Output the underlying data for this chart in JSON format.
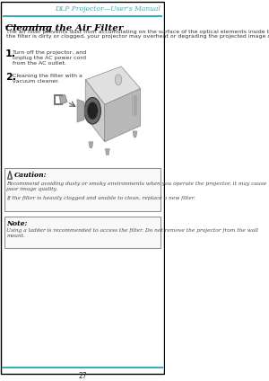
{
  "bg_color": "#ffffff",
  "border_color": "#000000",
  "header_line_color": "#3aacb5",
  "header_text": "DLP Projector—User's Manual",
  "header_text_color": "#3aacb5",
  "page_num": "27",
  "section_title": "Cleaning the Air Filter",
  "section_title_color": "#000000",
  "intro_text": "The air filter prevents dust from accumulating on the surface of the optical elements inside the projector. If\nthe filter is dirty or clogged, your projector may overheat or degrading the projected image quality.",
  "step1_num": "1.",
  "step1_text": "Turn off the projector, and\nunplug the AC power cord\nfrom the AC outlet.",
  "step2_num": "2.",
  "step2_text": "Cleaning the filter with a\nvacuum cleaner.",
  "caution_title": "Caution:",
  "caution_text1": "Recommend avoiding dusty or smoky environments when you operate the projector, it may cause\npoor image quality.",
  "caution_text2": "If the filter is heavily clogged and unable to clean, replace a new filter.",
  "note_title": "Note:",
  "note_text": "Using a ladder is recommended to access the filter. Do not remove the projector from the wall\nmount.",
  "font_color": "#333333",
  "italic_color": "#444444",
  "box_edge_color": "#888888",
  "step_num_color": "#000000"
}
